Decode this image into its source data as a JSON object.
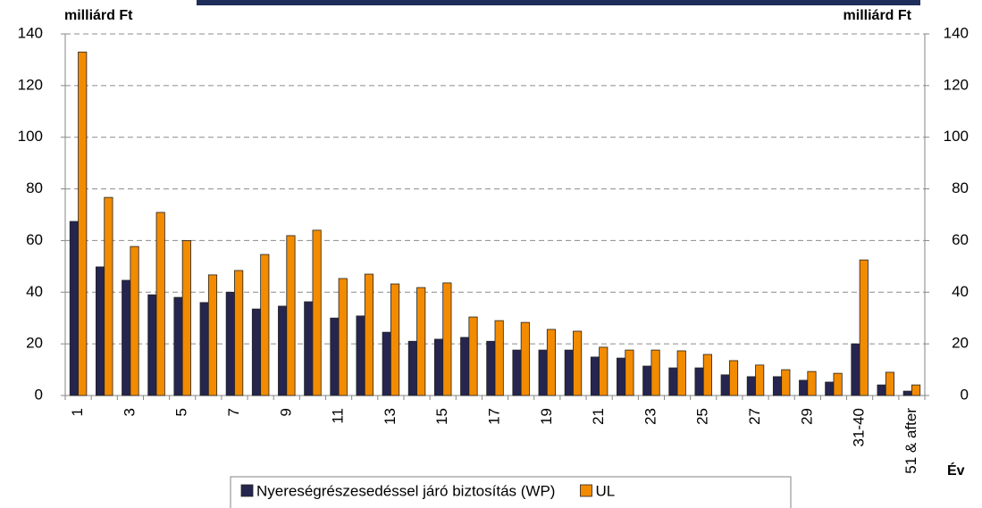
{
  "chart_data": {
    "type": "bar",
    "y_label": "milliárd Ft",
    "y2_label": "milliárd Ft",
    "x_label": "Év",
    "categories": [
      "1",
      null,
      "3",
      null,
      "5",
      null,
      "7",
      null,
      "9",
      null,
      "11",
      null,
      "13",
      null,
      "15",
      null,
      "17",
      null,
      "19",
      null,
      "21",
      null,
      "23",
      null,
      "25",
      null,
      "27",
      null,
      "29",
      null,
      "31-40",
      null,
      "51 & after"
    ],
    "series": [
      {
        "name": "Nyereségrészesedéssel járó biztosítás (WP)",
        "color": "#25254f",
        "values": [
          67.4,
          49.8,
          44.6,
          39,
          38,
          36,
          40,
          33.5,
          34.6,
          36.3,
          30,
          30.8,
          24.5,
          21,
          21.8,
          22.5,
          21,
          17.6,
          17.6,
          17.6,
          14.9,
          14.5,
          11.4,
          10.7,
          10.7,
          8,
          7.3,
          7.3,
          5.9,
          5.2,
          20,
          4.1,
          1.7
        ]
      },
      {
        "name": "UL",
        "color": "#f28b00",
        "values": [
          133,
          76.7,
          57.7,
          70.9,
          60,
          46.7,
          48.4,
          54.6,
          61.9,
          64,
          45.3,
          47,
          43.2,
          41.8,
          43.6,
          30.4,
          29,
          28.3,
          25.6,
          24.9,
          18.7,
          17.6,
          17.6,
          17.3,
          15.9,
          13.5,
          11.8,
          10,
          9.3,
          8.6,
          52.5,
          9,
          4.1
        ]
      }
    ],
    "ylim": [
      0,
      140
    ],
    "yticks": [
      0,
      20,
      40,
      60,
      80,
      100,
      120,
      140
    ],
    "y2lim": [
      0,
      140
    ],
    "y2ticks": [
      0,
      20,
      40,
      60,
      80,
      100,
      120,
      140
    ],
    "grid": true
  }
}
